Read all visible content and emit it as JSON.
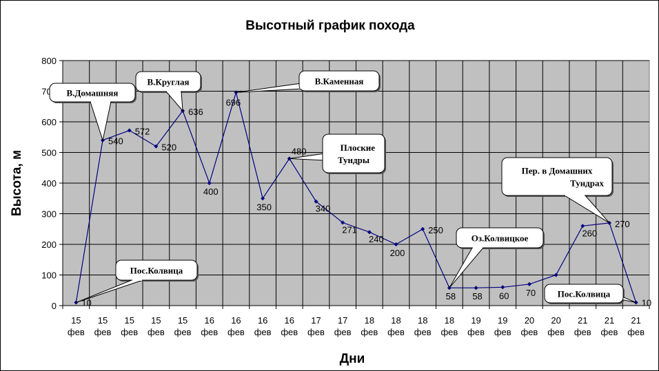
{
  "chart_data": {
    "type": "line",
    "title": "Высотный график похода",
    "xlabel": "Дни",
    "ylabel": "Высота, м",
    "ylim": [
      0,
      800
    ],
    "yticks": [
      0,
      100,
      200,
      300,
      400,
      500,
      600,
      700,
      800
    ],
    "grid": true,
    "categories": [
      {
        "day": "15",
        "month": "фев"
      },
      {
        "day": "15",
        "month": "фев"
      },
      {
        "day": "15",
        "month": "фев"
      },
      {
        "day": "15",
        "month": "фев"
      },
      {
        "day": "15",
        "month": "фев"
      },
      {
        "day": "16",
        "month": "фев"
      },
      {
        "day": "16",
        "month": "фев"
      },
      {
        "day": "16",
        "month": "фев"
      },
      {
        "day": "16",
        "month": "фев"
      },
      {
        "day": "17",
        "month": "фев"
      },
      {
        "day": "17",
        "month": "фев"
      },
      {
        "day": "18",
        "month": "фев"
      },
      {
        "day": "18",
        "month": "фев"
      },
      {
        "day": "18",
        "month": "фев"
      },
      {
        "day": "18",
        "month": "фев"
      },
      {
        "day": "19",
        "month": "фев"
      },
      {
        "day": "19",
        "month": "фев"
      },
      {
        "day": "20",
        "month": "фев"
      },
      {
        "day": "20",
        "month": "фев"
      },
      {
        "day": "21",
        "month": "фев"
      },
      {
        "day": "21",
        "month": "фев"
      },
      {
        "day": "21",
        "month": "фев"
      }
    ],
    "values": [
      10,
      540,
      572,
      520,
      636,
      400,
      696,
      350,
      480,
      340,
      271,
      240,
      200,
      250,
      58,
      58,
      60,
      70,
      100,
      260,
      270,
      10
    ],
    "data_labels": [
      "10",
      "540",
      "572",
      "520",
      "636",
      "400",
      "696",
      "350",
      "480",
      "340",
      "271",
      "240",
      "200",
      "250",
      "58",
      "58",
      "60",
      "70",
      "",
      "260",
      "270",
      "10"
    ],
    "line_color": "#000080",
    "plot_background": "#c0c0c0",
    "annotations": [
      {
        "lines": [
          "В.Домашняя"
        ],
        "point_index": 1
      },
      {
        "lines": [
          "В.Круглая"
        ],
        "point_index": 4
      },
      {
        "lines": [
          "В.Каменная"
        ],
        "point_index": 6
      },
      {
        "lines": [
          "Плоские",
          "Тундры"
        ],
        "point_index": 8
      },
      {
        "lines": [
          "Пер. в Домашних",
          "Тундрах"
        ],
        "point_index": 20
      },
      {
        "lines": [
          "Оз.Колвицкое"
        ],
        "point_index": 14
      },
      {
        "lines": [
          "Пос.Колвица"
        ],
        "point_index": 0
      },
      {
        "lines": [
          "Пос.Колвица"
        ],
        "point_index": 21
      }
    ]
  }
}
